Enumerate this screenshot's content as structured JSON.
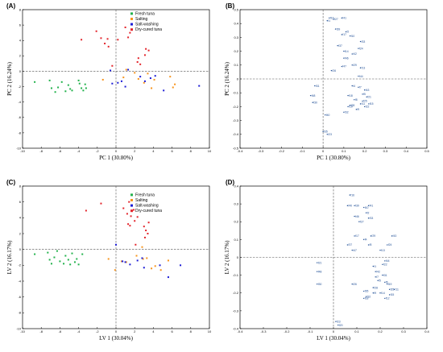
{
  "colors": {
    "fresh_tuna": "#22b24c",
    "salting": "#f7941d",
    "salt_washing": "#1c1cd6",
    "dry_cured_tuna": "#e3242b",
    "loading_label": "#1f4e96"
  },
  "chart_data": [
    {
      "panel": "(A)",
      "type": "scatter",
      "xlabel": "PC 1 (30.80%)",
      "ylabel": "PC 2 (16.24%)",
      "xlim": [
        -10,
        10
      ],
      "ylim": [
        -10,
        8
      ],
      "xticks": [
        -10,
        -8,
        -6,
        -4,
        -2,
        0,
        2,
        4,
        6,
        8,
        10
      ],
      "yticks": [
        -10,
        -8,
        -6,
        -4,
        -2,
        0,
        2,
        4,
        6,
        8
      ],
      "legend_position": "top-right",
      "series": [
        {
          "name": "Fresh tuna",
          "color_key": "fresh_tuna",
          "points": [
            [
              -8.7,
              -1.4
            ],
            [
              -7.1,
              -1.2
            ],
            [
              -6.9,
              -2.2
            ],
            [
              -6.5,
              -2.7
            ],
            [
              -6.2,
              -2.1
            ],
            [
              -5.8,
              -1.4
            ],
            [
              -5.4,
              -2.6
            ],
            [
              -5.1,
              -1.8
            ],
            [
              -4.9,
              -2.3
            ],
            [
              -4.7,
              -2.5
            ],
            [
              -4.0,
              -1.2
            ],
            [
              -3.9,
              -1.6
            ],
            [
              -3.7,
              -2.2
            ],
            [
              -3.5,
              -2.5
            ],
            [
              -3.3,
              -1.7
            ],
            [
              -3.2,
              -2.2
            ]
          ]
        },
        {
          "name": "Salting",
          "color_key": "salting",
          "points": [
            [
              -1.4,
              -1.1
            ],
            [
              0.8,
              -0.8
            ],
            [
              1.1,
              0.2
            ],
            [
              2.0,
              -0.2
            ],
            [
              2.4,
              -1.0
            ],
            [
              3.0,
              -1.5
            ],
            [
              3.4,
              -0.3
            ],
            [
              3.8,
              -2.2
            ],
            [
              4.1,
              -1.1
            ],
            [
              5.8,
              -0.7
            ],
            [
              6.1,
              -2.1
            ],
            [
              6.3,
              -1.7
            ]
          ]
        },
        {
          "name": "Salt-washing",
          "color_key": "salt_washing",
          "points": [
            [
              -0.6,
              0.1
            ],
            [
              -0.4,
              -1.6
            ],
            [
              0.2,
              -1.5
            ],
            [
              0.6,
              -1.3
            ],
            [
              1.0,
              -2.0
            ],
            [
              1.3,
              0.2
            ],
            [
              2.6,
              -0.7
            ],
            [
              3.1,
              -1.3
            ],
            [
              3.7,
              -0.9
            ],
            [
              4.2,
              -0.6
            ],
            [
              5.1,
              -2.5
            ],
            [
              8.9,
              -1.9
            ]
          ]
        },
        {
          "name": "Dry-cured tuna",
          "color_key": "dry_cured_tuna",
          "points": [
            [
              -3.7,
              4.1
            ],
            [
              -2.1,
              5.2
            ],
            [
              -1.6,
              4.3
            ],
            [
              -1.2,
              3.6
            ],
            [
              -0.9,
              4.2
            ],
            [
              -0.8,
              3.2
            ],
            [
              -0.4,
              0.7
            ],
            [
              0.2,
              4.1
            ],
            [
              1.0,
              5.7
            ],
            [
              1.3,
              4.4
            ],
            [
              1.5,
              5.0
            ],
            [
              2.3,
              1.2
            ],
            [
              2.4,
              1.7
            ],
            [
              2.6,
              0.9
            ],
            [
              3.1,
              2.1
            ],
            [
              3.2,
              2.9
            ],
            [
              3.5,
              2.7
            ]
          ]
        }
      ]
    },
    {
      "panel": "(B)",
      "type": "scatter",
      "xlabel": "PC 1 (30.80%)",
      "ylabel": "PC 2 (16.24%)",
      "xlim": [
        -0.4,
        0.5
      ],
      "ylim": [
        -0.5,
        0.5
      ],
      "xticks": [
        -0.4,
        -0.3,
        -0.2,
        -0.1,
        0,
        0.1,
        0.2,
        0.3,
        0.4,
        0.5
      ],
      "yticks": [
        -0.5,
        -0.4,
        -0.3,
        -0.2,
        -0.1,
        0,
        0.1,
        0.2,
        0.3,
        0.4,
        0.5
      ],
      "points": [
        {
          "label": "f16",
          "x": 0.03,
          "y": 0.44
        },
        {
          "label": "f41",
          "x": 0.09,
          "y": 0.44
        },
        {
          "label": "f27",
          "x": 0.05,
          "y": 0.43
        },
        {
          "label": "f1",
          "x": 0.02,
          "y": 0.42
        },
        {
          "label": "f39",
          "x": 0.06,
          "y": 0.36
        },
        {
          "label": "f2",
          "x": 0.11,
          "y": 0.34
        },
        {
          "label": "f17",
          "x": 0.09,
          "y": 0.32
        },
        {
          "label": "f10",
          "x": 0.13,
          "y": 0.31
        },
        {
          "label": "f33",
          "x": 0.18,
          "y": 0.27
        },
        {
          "label": "f37",
          "x": 0.07,
          "y": 0.24
        },
        {
          "label": "f24",
          "x": 0.17,
          "y": 0.22
        },
        {
          "label": "f14",
          "x": 0.1,
          "y": 0.2
        },
        {
          "label": "f42",
          "x": 0.14,
          "y": 0.18
        },
        {
          "label": "f46",
          "x": 0.1,
          "y": 0.15
        },
        {
          "label": "f47",
          "x": 0.09,
          "y": 0.09
        },
        {
          "label": "f26",
          "x": 0.04,
          "y": 0.06
        },
        {
          "label": "f29",
          "x": 0.14,
          "y": 0.1
        },
        {
          "label": "f13",
          "x": 0.18,
          "y": 0.08
        },
        {
          "label": "f44",
          "x": 0.17,
          "y": 0.02
        },
        {
          "label": "f4",
          "x": 0.14,
          "y": -0.05
        },
        {
          "label": "f31",
          "x": -0.04,
          "y": -0.05
        },
        {
          "label": "f7",
          "x": 0.17,
          "y": -0.06
        },
        {
          "label": "f43",
          "x": 0.2,
          "y": -0.08
        },
        {
          "label": "f48",
          "x": -0.06,
          "y": -0.12
        },
        {
          "label": "f5",
          "x": 0.19,
          "y": -0.11
        },
        {
          "label": "f18",
          "x": 0.12,
          "y": -0.12
        },
        {
          "label": "f21",
          "x": 0.21,
          "y": -0.13
        },
        {
          "label": "f8",
          "x": 0.15,
          "y": -0.15
        },
        {
          "label": "f30",
          "x": -0.05,
          "y": -0.17
        },
        {
          "label": "f25",
          "x": 0.19,
          "y": -0.16
        },
        {
          "label": "f28",
          "x": 0.13,
          "y": -0.19
        },
        {
          "label": "f11",
          "x": 0.18,
          "y": -0.18
        },
        {
          "label": "f15",
          "x": 0.22,
          "y": -0.18
        },
        {
          "label": "f19",
          "x": 0.12,
          "y": -0.2
        },
        {
          "label": "f22",
          "x": 0.2,
          "y": -0.2
        },
        {
          "label": "f9",
          "x": 0.16,
          "y": -0.22
        },
        {
          "label": "f32",
          "x": 0.1,
          "y": -0.24
        },
        {
          "label": "f40",
          "x": 0.01,
          "y": -0.26
        },
        {
          "label": "f35",
          "x": 0.0,
          "y": -0.38
        },
        {
          "label": "f23",
          "x": 0.02,
          "y": -0.4
        }
      ]
    },
    {
      "panel": "(C)",
      "type": "scatter",
      "xlabel": "LV 1 (30.04%)",
      "ylabel": "LV 2 (16.17%)",
      "xlim": [
        -10,
        10
      ],
      "ylim": [
        -10,
        8
      ],
      "xticks": [
        -10,
        -8,
        -6,
        -4,
        -2,
        0,
        2,
        4,
        6,
        8,
        10
      ],
      "yticks": [
        -10,
        -8,
        -6,
        -4,
        -2,
        0,
        2,
        4,
        6,
        8
      ],
      "legend_position": "top-right",
      "series": [
        {
          "name": "Fresh tuna",
          "color_key": "fresh_tuna",
          "points": [
            [
              -8.7,
              -0.6
            ],
            [
              -7.3,
              -0.4
            ],
            [
              -7.1,
              -1.3
            ],
            [
              -6.9,
              -1.8
            ],
            [
              -6.6,
              -1.0
            ],
            [
              -6.3,
              -0.2
            ],
            [
              -6.0,
              -1.5
            ],
            [
              -5.6,
              -1.8
            ],
            [
              -5.4,
              -0.8
            ],
            [
              -5.1,
              -1.3
            ],
            [
              -4.9,
              -1.9
            ],
            [
              -4.7,
              -0.5
            ],
            [
              -4.4,
              -1.6
            ],
            [
              -4.2,
              -1.2
            ],
            [
              -4.0,
              -1.9
            ],
            [
              -3.6,
              -0.6
            ]
          ]
        },
        {
          "name": "Salting",
          "color_key": "salting",
          "points": [
            [
              -0.8,
              -1.2
            ],
            [
              -0.1,
              -2.6
            ],
            [
              0.6,
              -1.5
            ],
            [
              1.1,
              -1.6
            ],
            [
              2.2,
              -0.8
            ],
            [
              2.8,
              0.3
            ],
            [
              2.9,
              -1.2
            ],
            [
              3.3,
              -1.1
            ],
            [
              3.8,
              -2.4
            ],
            [
              4.2,
              -2.1
            ],
            [
              4.8,
              -2.6
            ],
            [
              5.6,
              -1.4
            ]
          ]
        },
        {
          "name": "Salt-washing",
          "color_key": "salt_washing",
          "points": [
            [
              0.0,
              0.6
            ],
            [
              0.7,
              -1.5
            ],
            [
              1.0,
              -1.6
            ],
            [
              1.5,
              -1.9
            ],
            [
              2.3,
              -1.4
            ],
            [
              2.8,
              -1.1
            ],
            [
              3.0,
              -2.3
            ],
            [
              4.7,
              -2.0
            ],
            [
              5.6,
              -3.5
            ],
            [
              6.9,
              -2.0
            ]
          ]
        },
        {
          "name": "Dry-cured tuna",
          "color_key": "dry_cured_tuna",
          "points": [
            [
              -3.2,
              4.9
            ],
            [
              -1.6,
              5.8
            ],
            [
              0.8,
              5.2
            ],
            [
              1.2,
              4.5
            ],
            [
              1.3,
              3.2
            ],
            [
              1.4,
              6.0
            ],
            [
              1.5,
              3.0
            ],
            [
              1.6,
              4.2
            ],
            [
              1.9,
              5.0
            ],
            [
              2.0,
              3.6
            ],
            [
              2.1,
              0.6
            ],
            [
              2.3,
              4.1
            ],
            [
              3.0,
              2.9
            ],
            [
              3.1,
              1.5
            ],
            [
              3.2,
              2.4
            ],
            [
              3.4,
              2.0
            ],
            [
              3.5,
              3.4
            ]
          ]
        }
      ]
    },
    {
      "panel": "(D)",
      "type": "scatter",
      "xlabel": "LV 1 (30.04%)",
      "ylabel": "LV 2 (16.17%)",
      "xlim": [
        -0.4,
        0.4
      ],
      "ylim": [
        -0.4,
        0.4
      ],
      "xticks": [
        -0.4,
        -0.3,
        -0.2,
        -0.1,
        0,
        0.1,
        0.2,
        0.3,
        0.4
      ],
      "yticks": [
        -0.4,
        -0.3,
        -0.2,
        -0.1,
        0,
        0.1,
        0.2,
        0.3,
        0.4
      ],
      "points": [
        {
          "label": "f16",
          "x": 0.07,
          "y": 0.35
        },
        {
          "label": "f40",
          "x": 0.06,
          "y": 0.29
        },
        {
          "label": "f39",
          "x": 0.09,
          "y": 0.29
        },
        {
          "label": "f10",
          "x": 0.13,
          "y": 0.28
        },
        {
          "label": "f41",
          "x": 0.15,
          "y": 0.29
        },
        {
          "label": "f2",
          "x": 0.14,
          "y": 0.25
        },
        {
          "label": "f46",
          "x": 0.09,
          "y": 0.23
        },
        {
          "label": "f33",
          "x": 0.15,
          "y": 0.22
        },
        {
          "label": "f27",
          "x": 0.11,
          "y": 0.2
        },
        {
          "label": "f17",
          "x": 0.09,
          "y": 0.12
        },
        {
          "label": "f4",
          "x": 0.13,
          "y": 0.1
        },
        {
          "label": "f29",
          "x": 0.16,
          "y": 0.12
        },
        {
          "label": "f43",
          "x": 0.25,
          "y": 0.12
        },
        {
          "label": "f37",
          "x": 0.06,
          "y": 0.07
        },
        {
          "label": "f8",
          "x": 0.15,
          "y": 0.07
        },
        {
          "label": "f24",
          "x": 0.23,
          "y": 0.07
        },
        {
          "label": "f47",
          "x": 0.08,
          "y": 0.04
        },
        {
          "label": "f13",
          "x": 0.2,
          "y": 0.04
        },
        {
          "label": "f21",
          "x": -0.07,
          "y": -0.03
        },
        {
          "label": "f44",
          "x": 0.22,
          "y": -0.02
        },
        {
          "label": "f22",
          "x": 0.21,
          "y": -0.04
        },
        {
          "label": "f1",
          "x": 0.17,
          "y": -0.05
        },
        {
          "label": "f48",
          "x": -0.07,
          "y": -0.08
        },
        {
          "label": "f42",
          "x": 0.18,
          "y": -0.08
        },
        {
          "label": "f7",
          "x": 0.18,
          "y": -0.11
        },
        {
          "label": "f31",
          "x": 0.21,
          "y": -0.1
        },
        {
          "label": "f5",
          "x": 0.19,
          "y": -0.13
        },
        {
          "label": "f6",
          "x": 0.22,
          "y": -0.14
        },
        {
          "label": "f30",
          "x": -0.07,
          "y": -0.15
        },
        {
          "label": "f26",
          "x": 0.08,
          "y": -0.15
        },
        {
          "label": "f19",
          "x": 0.23,
          "y": -0.15
        },
        {
          "label": "f28",
          "x": 0.17,
          "y": -0.17
        },
        {
          "label": "f35",
          "x": 0.13,
          "y": -0.19
        },
        {
          "label": "f9",
          "x": 0.17,
          "y": -0.2
        },
        {
          "label": "f14",
          "x": 0.2,
          "y": -0.2
        },
        {
          "label": "f25",
          "x": 0.24,
          "y": -0.18
        },
        {
          "label": "f32",
          "x": 0.14,
          "y": -0.22
        },
        {
          "label": "f15",
          "x": 0.24,
          "y": -0.21
        },
        {
          "label": "f11",
          "x": 0.26,
          "y": -0.18
        },
        {
          "label": "f18",
          "x": 0.13,
          "y": -0.23
        },
        {
          "label": "f12",
          "x": 0.22,
          "y": -0.23
        },
        {
          "label": "f23",
          "x": 0.01,
          "y": -0.36
        },
        {
          "label": "f20",
          "x": 0.02,
          "y": -0.38
        }
      ]
    }
  ]
}
